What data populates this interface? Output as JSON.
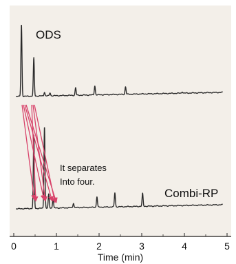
{
  "chart_data": {
    "type": "line",
    "xlabel": "Time (min)",
    "ylabel": "",
    "xlim": [
      0,
      5
    ],
    "x_ticks": [
      0,
      1,
      2,
      3,
      4,
      5
    ],
    "grid": false,
    "colors": {
      "background": "#f3efe9",
      "trace": "#2a2a2a",
      "arrow": "#d8426a"
    },
    "series": [
      {
        "name": "ODS",
        "peaks": [
          {
            "t": 0.18,
            "h": 0.95
          },
          {
            "t": 0.47,
            "h": 0.5
          },
          {
            "t": 0.72,
            "h": 0.05
          },
          {
            "t": 0.85,
            "h": 0.04
          },
          {
            "t": 1.45,
            "h": 0.1
          },
          {
            "t": 1.9,
            "h": 0.12
          },
          {
            "t": 2.62,
            "h": 0.1
          },
          {
            "t": 3.95,
            "h": 0.02
          }
        ]
      },
      {
        "name": "Combi-RP",
        "peaks": [
          {
            "t": 0.47,
            "h": 0.62
          },
          {
            "t": 0.72,
            "h": 0.7
          },
          {
            "t": 0.82,
            "h": 0.12
          },
          {
            "t": 0.92,
            "h": 0.08
          },
          {
            "t": 1.4,
            "h": 0.04
          },
          {
            "t": 1.95,
            "h": 0.09
          },
          {
            "t": 2.37,
            "h": 0.12
          },
          {
            "t": 3.02,
            "h": 0.11
          }
        ]
      }
    ],
    "annotations": [
      {
        "text": "It separates",
        "line": 1
      },
      {
        "text": "Into four.",
        "line": 2
      }
    ]
  }
}
